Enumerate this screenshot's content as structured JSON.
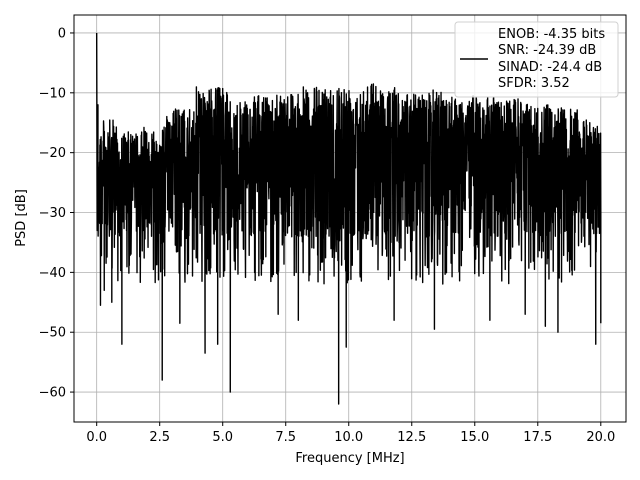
{
  "chart_data": {
    "type": "line",
    "title": "",
    "xlabel": "Frequency [MHz]",
    "ylabel": "PSD [dB]",
    "xlim": [
      -0.9,
      21.0
    ],
    "ylim": [
      -65,
      3
    ],
    "xticks": [
      0.0,
      2.5,
      5.0,
      7.5,
      10.0,
      12.5,
      15.0,
      17.5,
      20.0
    ],
    "xtick_labels": [
      "0.0",
      "2.5",
      "5.0",
      "7.5",
      "10.0",
      "12.5",
      "15.0",
      "17.5",
      "20.0"
    ],
    "yticks": [
      0,
      -10,
      -20,
      -30,
      -40,
      -50,
      -60
    ],
    "ytick_labels": [
      "0",
      "−10",
      "−20",
      "−30",
      "−40",
      "−50",
      "−60"
    ],
    "grid": true,
    "legend_position": "top-right",
    "series": [
      {
        "color": "#000000",
        "note_points": [
          [
            0.0,
            0.0
          ],
          [
            0.02,
            -33
          ],
          [
            0.05,
            -12
          ],
          [
            0.15,
            -45.5
          ],
          [
            0.3,
            -43
          ],
          [
            0.6,
            -45
          ],
          [
            1.0,
            -52
          ],
          [
            2.6,
            -58
          ],
          [
            3.3,
            -48.5
          ],
          [
            4.3,
            -53.5
          ],
          [
            4.8,
            -52
          ],
          [
            5.3,
            -60
          ],
          [
            7.2,
            -47
          ],
          [
            8.0,
            -48
          ],
          [
            9.6,
            -62
          ],
          [
            9.9,
            -52.5
          ],
          [
            11.8,
            -48
          ],
          [
            13.4,
            -49.5
          ],
          [
            15.6,
            -48
          ],
          [
            17.0,
            -47
          ],
          [
            17.8,
            -49
          ],
          [
            18.3,
            -50
          ],
          [
            19.8,
            -52
          ],
          [
            20.0,
            -48.5
          ]
        ],
        "peaks": [
          [
            0.25,
            -13
          ],
          [
            1.4,
            -15
          ],
          [
            2.2,
            -14
          ],
          [
            3.3,
            -11
          ],
          [
            4.6,
            -7.5
          ],
          [
            5.8,
            -10
          ],
          [
            6.6,
            -9
          ],
          [
            7.6,
            -8
          ],
          [
            8.6,
            -7.5
          ],
          [
            9.5,
            -7
          ],
          [
            10.0,
            -7
          ],
          [
            10.9,
            -6.5
          ],
          [
            11.6,
            -7.5
          ],
          [
            12.5,
            -8.5
          ],
          [
            13.5,
            -8
          ],
          [
            14.7,
            -9
          ],
          [
            15.7,
            -9
          ],
          [
            16.6,
            -9.5
          ],
          [
            17.6,
            -10.5
          ],
          [
            18.6,
            -11
          ],
          [
            19.6,
            -13
          ]
        ]
      }
    ],
    "legend": {
      "lines": [
        "ENOB: -4.35 bits",
        "SNR: -24.39 dB",
        "SINAD: -24.4 dB",
        "SFDR: 3.52"
      ]
    }
  }
}
